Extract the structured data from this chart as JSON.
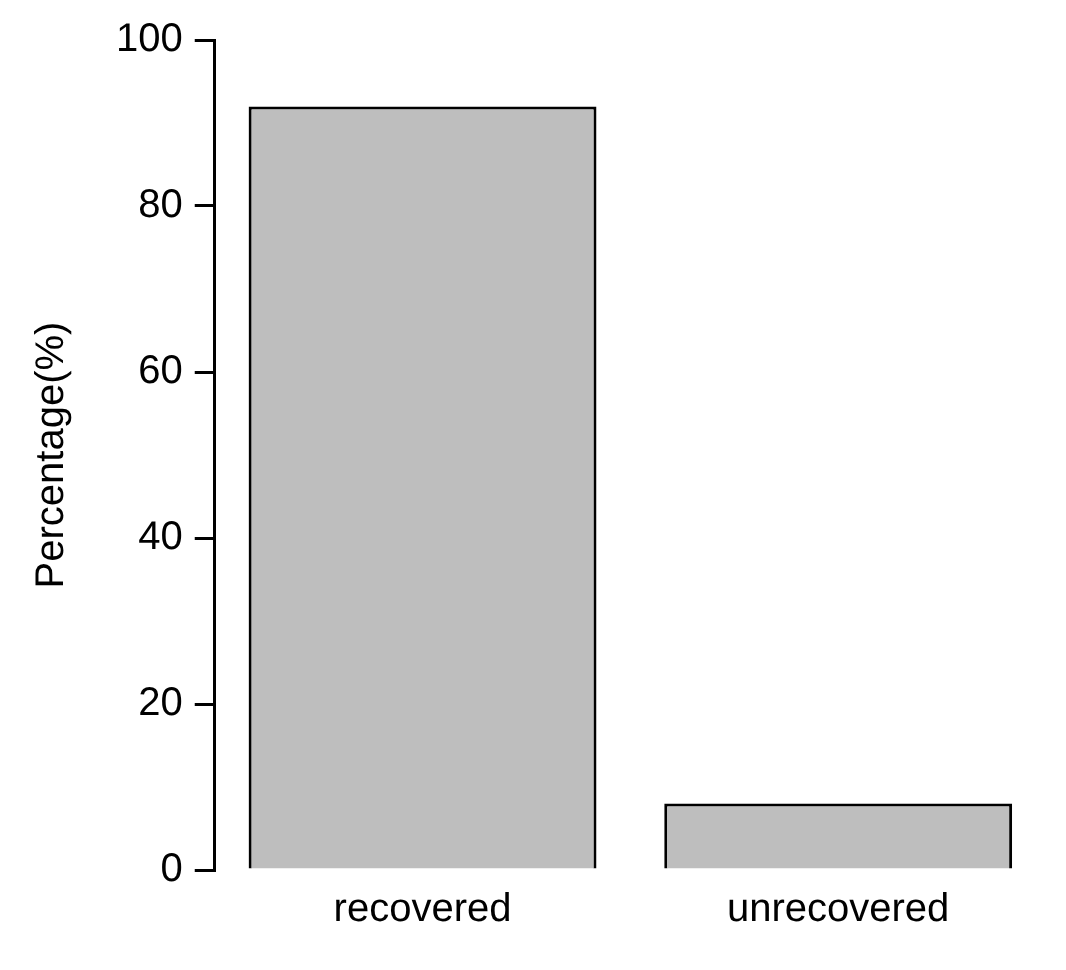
{
  "chart_data": {
    "type": "bar",
    "ylabel": "Percentage(%)",
    "categories": [
      "recovered",
      "unrecovered"
    ],
    "values": [
      92,
      8
    ],
    "color": "#bebebe",
    "ylim": [
      0,
      100
    ],
    "yticks": [
      0,
      20,
      40,
      60,
      80,
      100
    ],
    "grid": false
  }
}
